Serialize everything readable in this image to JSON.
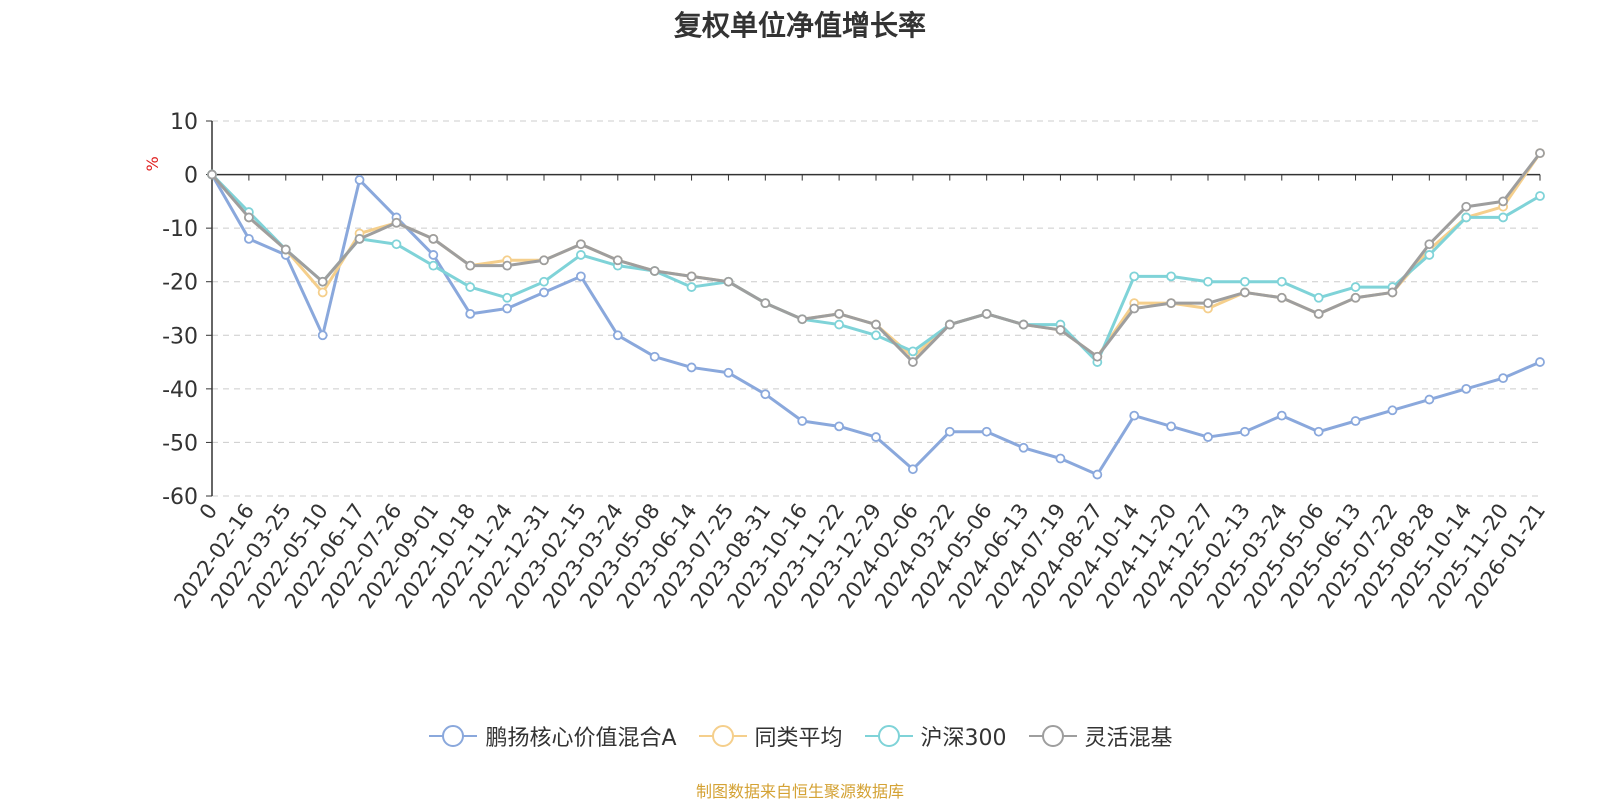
{
  "chart_data": {
    "type": "line",
    "title": "复权单位净值增长率",
    "ylabel": "%",
    "ylim": [
      -60,
      10
    ],
    "yticks": [
      10,
      0,
      -10,
      -20,
      -30,
      -40,
      -50,
      -60
    ],
    "categories": [
      "0",
      "2022-02-16",
      "2022-03-25",
      "2022-05-10",
      "2022-06-17",
      "2022-07-26",
      "2022-09-01",
      "2022-10-18",
      "2022-11-24",
      "2022-12-31",
      "2023-02-15",
      "2023-03-24",
      "2023-05-08",
      "2023-06-14",
      "2023-07-25",
      "2023-08-31",
      "2023-10-16",
      "2023-11-22",
      "2023-12-29",
      "2024-02-06",
      "2024-03-22",
      "2024-05-06",
      "2024-06-13",
      "2024-07-19",
      "2024-08-27",
      "2024-10-14",
      "2024-11-20",
      "2024-12-27",
      "2025-02-13",
      "2025-03-24",
      "2025-05-06",
      "2025-06-13",
      "2025-07-22",
      "2025-08-28",
      "2025-10-14",
      "2025-11-20",
      "2026-01-21"
    ],
    "grid": "dashed horizontal",
    "legend": "bottom-center",
    "series": [
      {
        "name": "鹏扬核心价值混合A",
        "color": "#8aa8dc",
        "values": [
          0,
          -12,
          -15,
          -30,
          -1,
          -8,
          -15,
          -26,
          -25,
          -22,
          -19,
          -30,
          -34,
          -36,
          -37,
          -41,
          -46,
          -47,
          -49,
          -55,
          -48,
          -48,
          -51,
          -53,
          -56,
          -45,
          -47,
          -49,
          -48,
          -45,
          -48,
          -46,
          -44,
          -42,
          -40,
          -38,
          -35
        ]
      },
      {
        "name": "同类平均",
        "color": "#f5cf8c",
        "values": [
          0,
          -8,
          -14,
          -22,
          -11,
          -9,
          -12,
          -17,
          -16,
          -16,
          -13,
          -16,
          -18,
          -19,
          -20,
          -24,
          -27,
          -26,
          -28,
          -34,
          -28,
          -26,
          -28,
          -29,
          -34,
          -24,
          -24,
          -25,
          -22,
          -23,
          -26,
          -23,
          -22,
          -14,
          -8,
          -6,
          4
        ]
      },
      {
        "name": "沪深300",
        "color": "#7fd3d8",
        "values": [
          0,
          -7,
          -14,
          -20,
          -12,
          -13,
          -17,
          -21,
          -23,
          -20,
          -15,
          -17,
          -18,
          -21,
          -20,
          -24,
          -27,
          -28,
          -30,
          -33,
          -28,
          -26,
          -28,
          -28,
          -35,
          -19,
          -19,
          -20,
          -20,
          -20,
          -23,
          -21,
          -21,
          -15,
          -8,
          -8,
          -4
        ]
      },
      {
        "name": "灵活混基",
        "color": "#9e9e9e",
        "values": [
          0,
          -8,
          -14,
          -20,
          -12,
          -9,
          -12,
          -17,
          -17,
          -16,
          -13,
          -16,
          -18,
          -19,
          -20,
          -24,
          -27,
          -26,
          -28,
          -35,
          -28,
          -26,
          -28,
          -29,
          -34,
          -25,
          -24,
          -24,
          -22,
          -23,
          -26,
          -23,
          -22,
          -13,
          -6,
          -5,
          4
        ]
      }
    ]
  },
  "source_note": "制图数据来自恒生聚源数据库"
}
